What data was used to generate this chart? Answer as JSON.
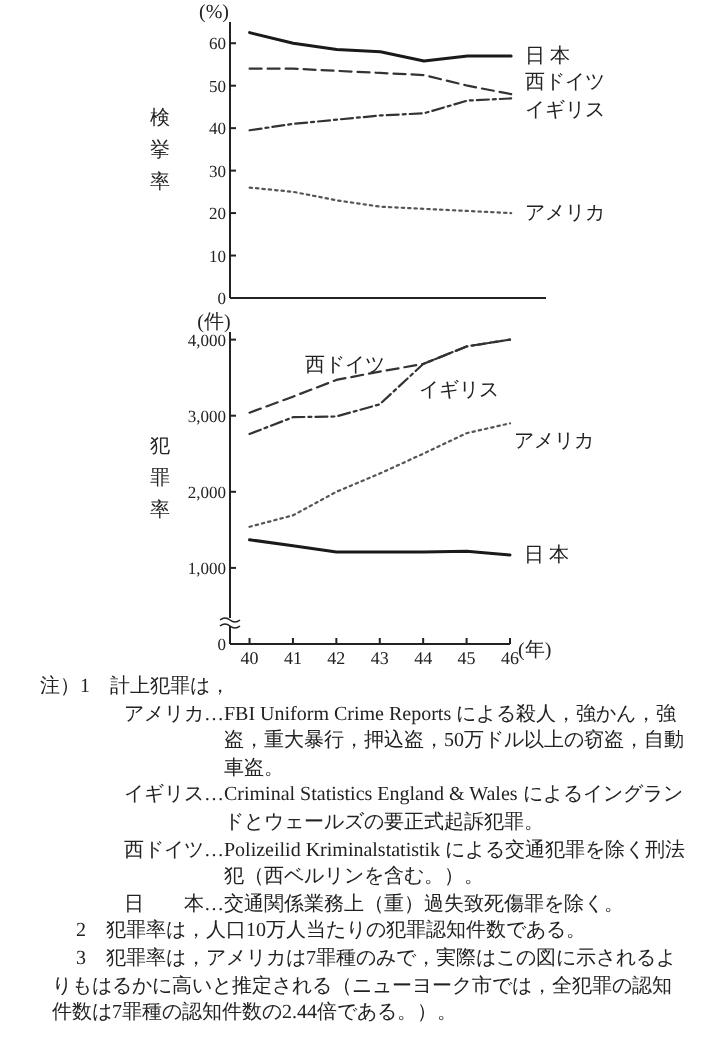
{
  "chart_data": [
    {
      "type": "line",
      "ylabel": "検挙率",
      "annotations": [
        "(%)"
      ],
      "categories": [
        null,
        null,
        null,
        null,
        null,
        null,
        null
      ],
      "ylim": [
        0,
        65
      ],
      "yticks": [
        0,
        10,
        20,
        30,
        40,
        50,
        60
      ],
      "tick_labels": "y",
      "legend": false,
      "grid": false,
      "series": [
        {
          "name": "日 本",
          "color": "#1a1a1a",
          "line_style": "solid",
          "values": [
            62.5,
            60,
            58.5,
            58,
            55.8,
            57,
            57
          ]
        },
        {
          "name": "西ドイツ",
          "color": "#333333",
          "line_style": "dashed",
          "values": [
            54,
            54,
            53.5,
            53,
            52.5,
            50,
            48
          ]
        },
        {
          "name": "イギリス",
          "color": "#333333",
          "line_style": "dashdot",
          "values": [
            39.5,
            41,
            42,
            43,
            43.5,
            46.5,
            47
          ]
        },
        {
          "name": "アメリカ",
          "color": "#555555",
          "line_style": "dotted",
          "values": [
            26,
            25,
            23,
            21.5,
            21,
            20.5,
            20
          ]
        }
      ]
    },
    {
      "type": "line",
      "ylabel": "犯罪率",
      "xlabel": "(年)",
      "annotations": [
        "(件)",
        "注）1　計上犯罪は，",
        "アメリカ…FBI Uniform Crime Reports による殺人，強かん，強盗，重大暴行，押込盗，50万ドル以上の窃盗，自動車盗。",
        "イギリス…Criminal Statistics England & Wales によるイングランドとウェールズの要正式起訴犯罪。",
        "西ドイツ…Polizeilid Kriminalstatistik による交通犯罪を除く刑法犯（西ベルリンを含む。）。",
        "日　　本…交通関係業務上（重）過失致死傷罪を除く。",
        "2　犯罪率は，人口10万人当たりの犯罪認知件数である。",
        "3　犯罪率は，アメリカは7罪種のみで，実際はこの図に示されるよりもはるかに高いと推定される（ニューヨーク市では，全犯罪の認知件数は7罪種の認知件数の2.44倍である。）。"
      ],
      "x": [
        40,
        41,
        42,
        43,
        44,
        45,
        46
      ],
      "xlim": [
        39.55,
        46
      ],
      "xticks": [
        40,
        41,
        42,
        43,
        44,
        45,
        46
      ],
      "ylim": [
        0,
        4100
      ],
      "yticks": [
        0,
        {
          "value": 1000,
          "label": "1,000"
        },
        {
          "value": 2000,
          "label": "2,000"
        },
        {
          "value": 3000,
          "label": "3,000"
        },
        {
          "value": 4000,
          "label": "4,000"
        }
      ],
      "legend": false,
      "grid": false,
      "series": [
        {
          "name": "西ドイツ",
          "color": "#333333",
          "line_style": "dashed",
          "values": [
            3040,
            3250,
            3470,
            3580,
            3680,
            3910,
            4000
          ]
        },
        {
          "name": "イギリス",
          "color": "#333333",
          "line_style": "dashdot",
          "values": [
            2760,
            2980,
            2990,
            3150,
            3680,
            3910,
            4000
          ]
        },
        {
          "name": "アメリカ",
          "color": "#555555",
          "line_style": "dotted",
          "values": [
            1540,
            1690,
            2000,
            2240,
            2500,
            2770,
            2900
          ]
        },
        {
          "name": "日 本",
          "color": "#1a1a1a",
          "line_style": "solid",
          "values": [
            1370,
            1290,
            1210,
            1210,
            1210,
            1220,
            1170
          ]
        }
      ]
    }
  ]
}
